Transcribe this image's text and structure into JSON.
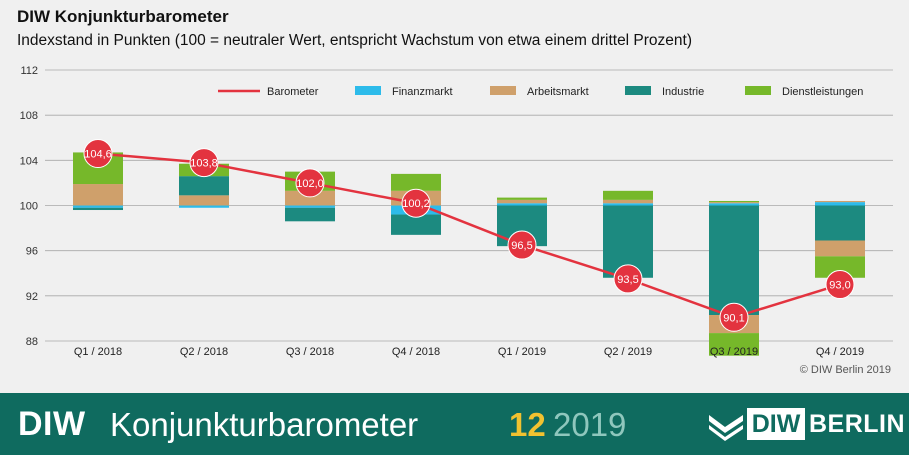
{
  "header": {
    "title": "DIW Konjunkturbarometer",
    "subtitle": "Indexstand in Punkten (100 = neutraler Wert, entspricht Wachstum von etwa einem drittel Prozent)"
  },
  "chart_data": {
    "type": "bar",
    "title": "DIW Konjunkturbarometer",
    "subtitle": "Indexstand in Punkten (100 = neutraler Wert, entspricht Wachstum von etwa einem drittel Prozent)",
    "categories": [
      "Q1 / 2018",
      "Q2 / 2018",
      "Q3 / 2018",
      "Q4 / 2018",
      "Q1 / 2019",
      "Q2 / 2019",
      "Q3 / 2019",
      "Q4 / 2019"
    ],
    "baseline": 100,
    "ylim": [
      88,
      112
    ],
    "yticks": [
      88,
      92,
      96,
      100,
      104,
      108,
      112
    ],
    "grid": true,
    "legend_position": "top-right",
    "legend": [
      "Barometer",
      "Finanzmarkt",
      "Arbeitsmarkt",
      "Industrie",
      "Dienstleistungen"
    ],
    "series": [
      {
        "name": "Finanzmarkt",
        "color": "#2dbbea",
        "values": [
          -0.2,
          -0.2,
          -0.2,
          -0.8,
          0.2,
          0.2,
          0.2,
          0.3
        ]
      },
      {
        "name": "Arbeitsmarkt",
        "color": "#cfa06b",
        "values": [
          1.9,
          0.9,
          1.3,
          1.3,
          0.3,
          0.3,
          0.1,
          0.1
        ]
      },
      {
        "name": "Industrie",
        "color": "#1c8a80",
        "values": [
          -0.2,
          1.7,
          -1.2,
          -1.8,
          -3.6,
          -6.4,
          -9.7,
          -3.1
        ]
      },
      {
        "name": "Dienstleistungen",
        "color": "#76b82a",
        "values": [
          2.8,
          1.1,
          1.7,
          1.5,
          0.2,
          0.8,
          0.1,
          0.0
        ]
      },
      {
        "name": "Arbeitsmarkt (negativ)",
        "color": "#cfa06b",
        "values": [
          0,
          0,
          0,
          0,
          0,
          0,
          -1.6,
          -1.4
        ]
      },
      {
        "name": "Dienstleistungen (negativ)",
        "color": "#76b82a",
        "values": [
          0,
          0,
          0,
          0,
          0,
          0,
          -2.0,
          -1.9
        ]
      }
    ],
    "line": {
      "name": "Barometer",
      "color": "#e3333f",
      "values": [
        104.6,
        103.8,
        102.0,
        100.2,
        96.5,
        93.5,
        90.1,
        93.0
      ],
      "labels": [
        "104,6",
        "103,8",
        "102,0",
        "100,2",
        "96,5",
        "93,5",
        "90,1",
        "93,0"
      ]
    }
  },
  "copyright": "© DIW Berlin 2019",
  "footer": {
    "brand": "DIW",
    "name": "Konjunkturbarometer",
    "issue": "12",
    "year": "2019",
    "logo_diw": "DIW",
    "logo_berlin": "BERLIN"
  }
}
